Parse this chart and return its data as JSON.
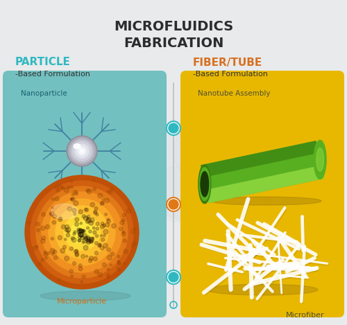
{
  "title_line1": "MICROFLUIDICS",
  "title_line2": "FABRICATION",
  "title_color": "#2c2c2c",
  "title_fontsize": 14,
  "bg_color": "#e8eaec",
  "left_card_color": "#72c0c0",
  "right_card_color": "#e8b800",
  "particle_label_color": "#30b8c0",
  "fiber_label_color": "#d87020",
  "label_text_color": "#303030",
  "card_label_big_left": "PARTICLE",
  "card_label_big_right": "FIBER/TUBE",
  "card_label_small": "-Based Formulation",
  "left_sub1": "Nanoparticle",
  "left_sub2": "Microparticle",
  "right_sub1": "Nanotube Assembly",
  "right_sub2": "Microfiber",
  "dot_teal": "#30b8c0",
  "dot_orange": "#e07818",
  "line_color": "#b0b0b0",
  "tube_green_dark": "#3a8010",
  "tube_green_mid": "#58b020",
  "tube_green_light": "#90d840",
  "tube_dark_end": "#2a5808"
}
